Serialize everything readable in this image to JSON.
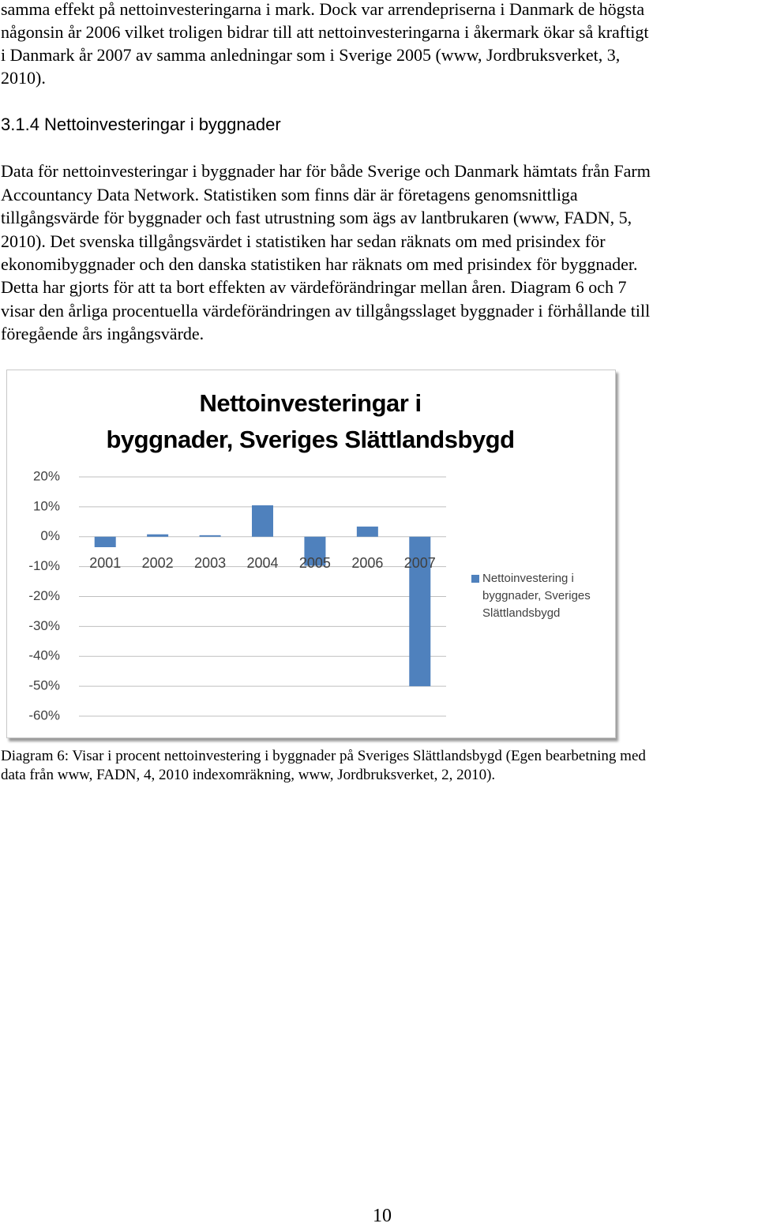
{
  "intro": {
    "lines": [
      "samma effekt på nettoinvesteringarna i mark. Dock var arrendepriserna i Danmark de högsta",
      "någonsin år 2006 vilket troligen bidrar till att nettoinvesteringarna i åkermark ökar så kraftigt",
      "i Danmark år 2007 av samma anledningar som i Sverige 2005 (www, Jordbruksverket, 3,",
      "2010)."
    ]
  },
  "section": {
    "heading": "3.1.4 Nettoinvesteringar i byggnader",
    "lines": [
      "Data för nettoinvesteringar i byggnader har för både Sverige och Danmark hämtats från Farm",
      "Accountancy Data Network. Statistiken som finns där är företagens genomsnittliga",
      "tillgångsvärde för byggnader och fast utrustning som ägs av lantbrukaren (www, FADN, 5,",
      "2010). Det svenska tillgångsvärdet i statistiken har sedan räknats om med prisindex för",
      "ekonomibyggnader och den danska statistiken har räknats om med prisindex för byggnader.",
      "Detta har gjorts för att ta bort effekten av värdeförändringar mellan åren. Diagram 6 och 7",
      "visar den årliga procentuella värdeförändringen av tillgångsslaget byggnader i förhållande till",
      "föregående års ingångsvärde."
    ]
  },
  "chart_data": {
    "type": "bar",
    "title": "Nettoinvesteringar i\nbyggnader, Sveriges Slättlandsbygd",
    "categories": [
      "2001",
      "2002",
      "2003",
      "2004",
      "2005",
      "2006",
      "2007"
    ],
    "series": [
      {
        "name": "Nettoinvestering i byggnader, Sveriges Slättlandsbygd",
        "color": "#4f81bd",
        "values": [
          -3.5,
          0.8,
          0.5,
          10.5,
          -9.7,
          3.4,
          -50
        ]
      }
    ],
    "ylim": [
      -60,
      20
    ],
    "yticks": [
      {
        "value": 20,
        "label": "20%"
      },
      {
        "value": 10,
        "label": "10%"
      },
      {
        "value": 0,
        "label": "0%"
      },
      {
        "value": -10,
        "label": "-10%"
      },
      {
        "value": -20,
        "label": "-20%"
      },
      {
        "value": -30,
        "label": "-30%"
      },
      {
        "value": -40,
        "label": "-40%"
      },
      {
        "value": -50,
        "label": "-50%"
      },
      {
        "value": -60,
        "label": "-60%"
      }
    ],
    "grid": true,
    "legend": "right"
  },
  "caption": {
    "lines": [
      "Diagram 6: Visar i procent  nettoinvestering i byggnader på Sveriges Slättlandsbygd (Egen bearbetning  med",
      "data från www, FADN, 4, 2010 indexomräkning, www, Jordbruksverket, 2, 2010)."
    ]
  },
  "footer": {
    "page_number": "10"
  }
}
